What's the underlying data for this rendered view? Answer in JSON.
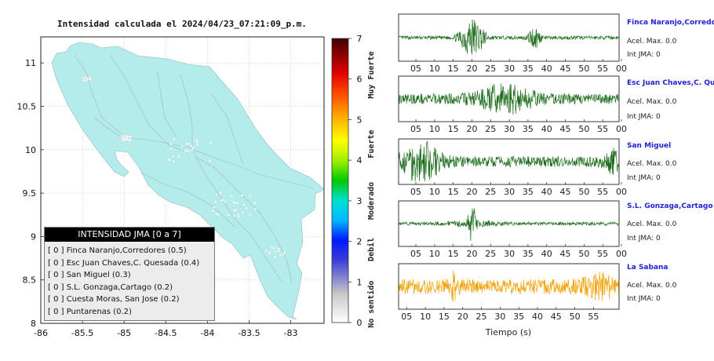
{
  "map": {
    "title": "Intensidad calculada el 2024/04/23_07:21:09_p.m.",
    "x_ticks": [
      "-86",
      "-85.5",
      "-85",
      "-84.5",
      "-84",
      "-83.5",
      "-83"
    ],
    "y_ticks": [
      "11",
      "10.5",
      "10",
      "9.5",
      "9",
      "8.5",
      "8"
    ],
    "xlim": [
      -86,
      -82.6
    ],
    "ylim": [
      8,
      11.3
    ],
    "land_color": "#b4ecec",
    "grid": true
  },
  "colorbar": {
    "ticks": [
      "0",
      "1",
      "2",
      "3",
      "4",
      "5",
      "6",
      "7"
    ],
    "labels": [
      "No sentido",
      "Debil",
      "Moderado",
      "Fuerte",
      "Muy Fuerte"
    ]
  },
  "legend": {
    "header": "INTENSIDAD JMA [0 a 7]",
    "items": [
      "[ 0 ]  Finca Naranjo,Corredores (0.5)",
      "[ 0 ]  Esc Juan Chaves,C. Quesada (0.4)",
      "[ 0 ]  San Miguel (0.3)",
      "[ 0 ]  S.L. Gonzaga,Cartago (0.2)",
      "[ 0 ]  Cuesta Moras, San Jose (0.2)",
      "[ 0 ]  Puntarenas (0.2)"
    ]
  },
  "traces": [
    {
      "name": "Finca Naranjo,Corredores",
      "acel": "Acel. Max. 0.0",
      "jma": "Int JMA: 0",
      "color": "#1a6b1a",
      "ticks": [
        "05",
        "10",
        "15",
        "20",
        "25",
        "30",
        "35",
        "40",
        "45",
        "50",
        "55",
        "00"
      ]
    },
    {
      "name": "Esc Juan Chaves,C. Quesada",
      "acel": "Acel. Max. 0.0",
      "jma": "Int JMA: 0",
      "color": "#1a6b1a",
      "ticks": [
        "05",
        "10",
        "15",
        "20",
        "25",
        "30",
        "35",
        "40",
        "45",
        "50",
        "55",
        "00"
      ]
    },
    {
      "name": "San Miguel",
      "acel": "Acel. Max. 0.0",
      "jma": "Int JMA: 0",
      "color": "#1a6b1a",
      "ticks": [
        "05",
        "10",
        "15",
        "20",
        "25",
        "30",
        "35",
        "40",
        "45",
        "50",
        "55",
        "00"
      ]
    },
    {
      "name": "S.L. Gonzaga,Cartago",
      "acel": "Acel. Max. 0.0",
      "jma": "Int JMA: 0",
      "color": "#1a6b1a",
      "ticks": [
        "05",
        "10",
        "15",
        "20",
        "25",
        "30",
        "35",
        "40",
        "45",
        "50",
        "55",
        "00"
      ]
    },
    {
      "name": "La Sabana",
      "acel": "Acel. Max. 0.0",
      "jma": "Int JMA: 0",
      "color": "#f0a000",
      "ticks": [
        "05",
        "10",
        "15",
        "20",
        "25",
        "30",
        "35",
        "40",
        "45",
        "50",
        "55"
      ]
    }
  ],
  "xaxis_label": "Tiempo (s)",
  "chart_data": [
    {
      "type": "other",
      "title": "Intensidad calculada el 2024/04/23_07:21:09_p.m.",
      "xlim": [
        -86,
        -82.6
      ],
      "ylim": [
        8,
        11.3
      ],
      "colorbar_range": [
        0,
        7
      ],
      "legend_title": "INTENSIDAD JMA [0 a 7]",
      "stations": [
        {
          "name": "Finca Naranjo,Corredores",
          "jma": 0,
          "value": 0.5
        },
        {
          "name": "Esc Juan Chaves,C. Quesada",
          "jma": 0,
          "value": 0.4
        },
        {
          "name": "San Miguel",
          "jma": 0,
          "value": 0.3
        },
        {
          "name": "S.L. Gonzaga,Cartago",
          "jma": 0,
          "value": 0.2
        },
        {
          "name": "Cuesta Moras, San Jose",
          "jma": 0,
          "value": 0.2
        },
        {
          "name": "Puntarenas",
          "jma": 0,
          "value": 0.2
        }
      ]
    },
    {
      "type": "line",
      "xlabel": "Tiempo (s)",
      "series": [
        {
          "name": "Finca Naranjo,Corredores",
          "acel_max": 0.0,
          "int_jma": 0
        },
        {
          "name": "Esc Juan Chaves,C. Quesada",
          "acel_max": 0.0,
          "int_jma": 0
        },
        {
          "name": "San Miguel",
          "acel_max": 0.0,
          "int_jma": 0
        },
        {
          "name": "S.L. Gonzaga,Cartago",
          "acel_max": 0.0,
          "int_jma": 0
        },
        {
          "name": "La Sabana",
          "acel_max": 0.0,
          "int_jma": 0
        }
      ]
    }
  ]
}
